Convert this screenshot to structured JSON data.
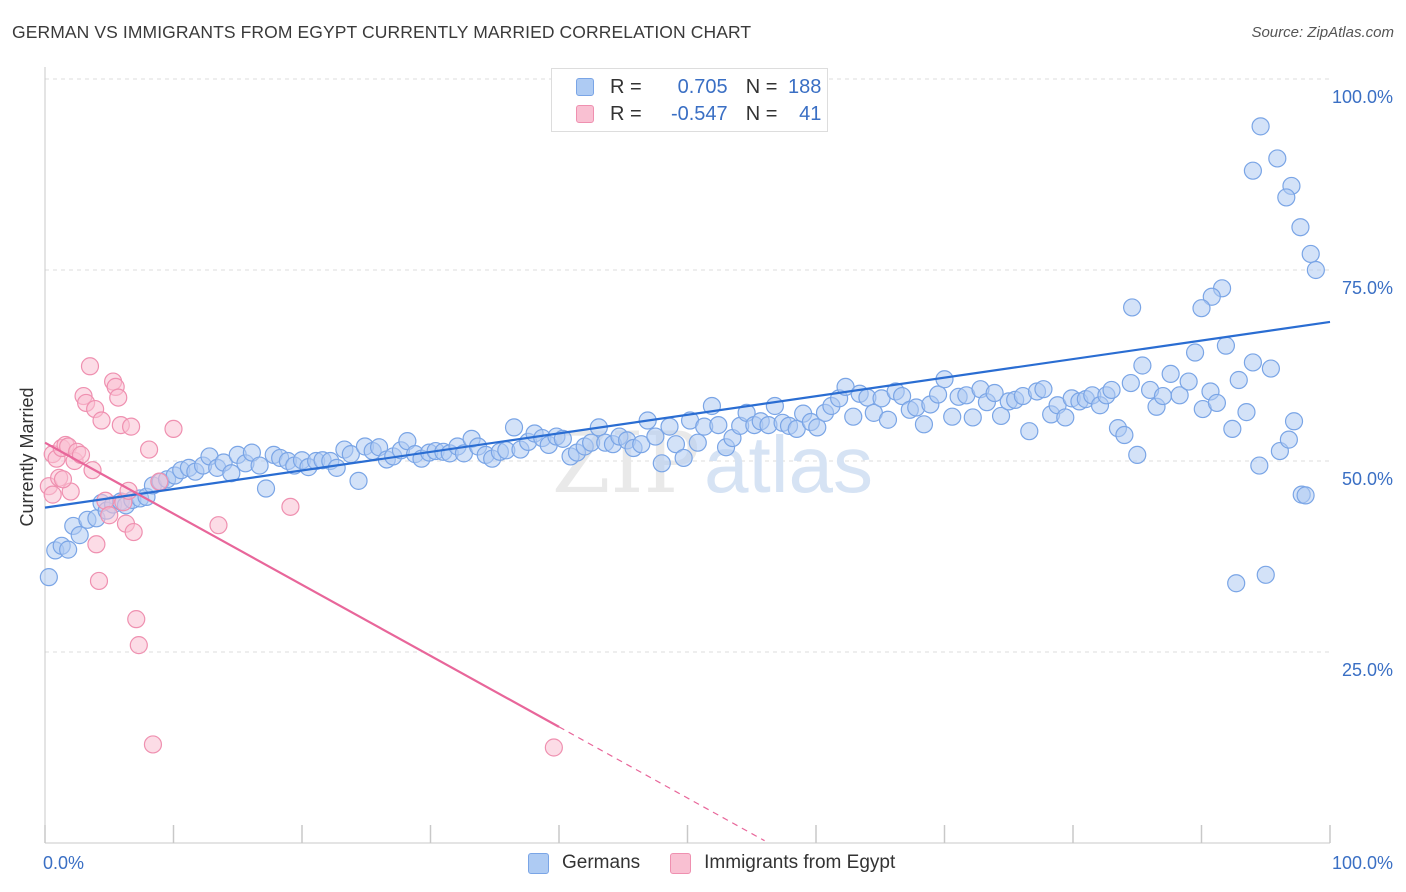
{
  "header": {
    "title": "GERMAN VS IMMIGRANTS FROM EGYPT CURRENTLY MARRIED CORRELATION CHART",
    "source": "Source: ZipAtlas.com"
  },
  "watermark": {
    "part1": "ZIP",
    "part2": "atlas"
  },
  "legend": {
    "rows": [
      {
        "r_label": "R =",
        "r_value": "0.705",
        "n_label": "N =",
        "n_value": "188",
        "color": "#aecbf3",
        "border": "#7aa5e6"
      },
      {
        "r_label": "R =",
        "r_value": "-0.547",
        "n_label": "N =",
        "n_value": "41",
        "color": "#f9c0d2",
        "border": "#ef90b0"
      }
    ]
  },
  "bottom_legend": [
    {
      "label": "Germans",
      "color": "#aecbf3",
      "border": "#7aa5e6"
    },
    {
      "label": "Immigrants from Egypt",
      "color": "#f9c0d2",
      "border": "#ef90b0"
    }
  ],
  "chart_data": {
    "type": "scatter",
    "title": "GERMAN VS IMMIGRANTS FROM EGYPT CURRENTLY MARRIED CORRELATION CHART",
    "xlabel": "",
    "ylabel": "Currently Married",
    "xlim": [
      0,
      100
    ],
    "ylim": [
      0,
      100
    ],
    "x_tick_labels": [
      {
        "value": 0,
        "label": "0.0%"
      },
      {
        "value": 100,
        "label": "100.0%"
      }
    ],
    "y_tick_labels": [
      {
        "value": 25,
        "label": "25.0%"
      },
      {
        "value": 50,
        "label": "50.0%"
      },
      {
        "value": 75,
        "label": "75.0%"
      },
      {
        "value": 100,
        "label": "100.0%"
      }
    ],
    "grid": true,
    "series": [
      {
        "name": "Germans",
        "color": "#7aa5e6",
        "fill": "#aecbf3",
        "trend": {
          "x0": 0,
          "y0": 43.9,
          "x1": 100,
          "y1": 68.2,
          "color": "#2a6dd2"
        },
        "points": [
          [
            0.3,
            34.8
          ],
          [
            0.8,
            38.3
          ],
          [
            1.3,
            38.9
          ],
          [
            1.8,
            38.4
          ],
          [
            2.2,
            41.5
          ],
          [
            2.7,
            40.3
          ],
          [
            3.3,
            42.3
          ],
          [
            4.0,
            42.5
          ],
          [
            4.4,
            44.5
          ],
          [
            4.8,
            43.5
          ],
          [
            5.3,
            44.3
          ],
          [
            5.9,
            44.7
          ],
          [
            6.3,
            44.2
          ],
          [
            6.8,
            44.9
          ],
          [
            7.4,
            45.1
          ],
          [
            7.9,
            45.3
          ],
          [
            8.4,
            46.8
          ],
          [
            9.0,
            47.3
          ],
          [
            9.5,
            47.6
          ],
          [
            10.1,
            48.1
          ],
          [
            10.6,
            48.8
          ],
          [
            11.2,
            49.1
          ],
          [
            11.7,
            48.6
          ],
          [
            12.3,
            49.4
          ],
          [
            12.8,
            50.6
          ],
          [
            13.4,
            49.1
          ],
          [
            13.9,
            49.8
          ],
          [
            14.5,
            48.4
          ],
          [
            15.0,
            50.8
          ],
          [
            15.6,
            49.7
          ],
          [
            16.1,
            51.1
          ],
          [
            16.7,
            49.4
          ],
          [
            17.2,
            46.4
          ],
          [
            17.8,
            50.8
          ],
          [
            18.3,
            50.4
          ],
          [
            18.9,
            50.0
          ],
          [
            19.4,
            49.4
          ],
          [
            20.0,
            50.1
          ],
          [
            20.5,
            49.2
          ],
          [
            21.1,
            50.0
          ],
          [
            21.6,
            50.1
          ],
          [
            22.2,
            50.0
          ],
          [
            22.7,
            49.1
          ],
          [
            23.3,
            51.5
          ],
          [
            23.8,
            50.9
          ],
          [
            24.4,
            47.4
          ],
          [
            24.9,
            51.9
          ],
          [
            25.5,
            51.3
          ],
          [
            26.0,
            51.8
          ],
          [
            26.6,
            50.2
          ],
          [
            27.1,
            50.6
          ],
          [
            27.7,
            51.4
          ],
          [
            28.2,
            52.6
          ],
          [
            28.8,
            50.9
          ],
          [
            29.3,
            50.3
          ],
          [
            29.9,
            51.1
          ],
          [
            30.4,
            51.3
          ],
          [
            31.0,
            51.2
          ],
          [
            31.5,
            51.0
          ],
          [
            32.1,
            51.9
          ],
          [
            32.6,
            51.0
          ],
          [
            33.2,
            52.9
          ],
          [
            33.7,
            51.9
          ],
          [
            34.3,
            50.8
          ],
          [
            34.8,
            50.3
          ],
          [
            35.4,
            51.2
          ],
          [
            35.9,
            51.4
          ],
          [
            36.5,
            54.4
          ],
          [
            37.0,
            51.5
          ],
          [
            37.6,
            52.5
          ],
          [
            38.1,
            53.6
          ],
          [
            38.7,
            53.0
          ],
          [
            39.2,
            52.1
          ],
          [
            39.8,
            53.2
          ],
          [
            40.3,
            52.9
          ],
          [
            40.9,
            50.6
          ],
          [
            41.4,
            51.1
          ],
          [
            42.0,
            51.9
          ],
          [
            42.5,
            52.4
          ],
          [
            43.1,
            54.4
          ],
          [
            43.6,
            52.4
          ],
          [
            44.2,
            52.2
          ],
          [
            44.7,
            53.2
          ],
          [
            45.3,
            52.7
          ],
          [
            45.8,
            51.7
          ],
          [
            46.4,
            52.2
          ],
          [
            46.9,
            55.3
          ],
          [
            47.5,
            53.2
          ],
          [
            48.0,
            49.7
          ],
          [
            48.6,
            54.5
          ],
          [
            49.1,
            52.2
          ],
          [
            49.7,
            50.4
          ],
          [
            50.2,
            55.3
          ],
          [
            50.8,
            52.4
          ],
          [
            51.3,
            54.5
          ],
          [
            51.9,
            57.2
          ],
          [
            52.4,
            54.7
          ],
          [
            53.0,
            51.8
          ],
          [
            53.5,
            53.0
          ],
          [
            54.1,
            54.6
          ],
          [
            54.6,
            56.3
          ],
          [
            55.2,
            54.7
          ],
          [
            55.7,
            55.2
          ],
          [
            56.3,
            54.7
          ],
          [
            56.8,
            57.2
          ],
          [
            57.4,
            55.0
          ],
          [
            57.9,
            54.6
          ],
          [
            58.5,
            54.2
          ],
          [
            59.0,
            56.2
          ],
          [
            59.6,
            55.1
          ],
          [
            60.1,
            54.4
          ],
          [
            60.7,
            56.3
          ],
          [
            61.2,
            57.2
          ],
          [
            61.8,
            58.2
          ],
          [
            62.3,
            59.7
          ],
          [
            62.9,
            55.8
          ],
          [
            63.4,
            58.8
          ],
          [
            64.0,
            58.3
          ],
          [
            64.5,
            56.3
          ],
          [
            65.1,
            58.2
          ],
          [
            65.6,
            55.4
          ],
          [
            66.2,
            59.1
          ],
          [
            66.7,
            58.5
          ],
          [
            67.3,
            56.7
          ],
          [
            67.8,
            57.0
          ],
          [
            68.4,
            54.8
          ],
          [
            68.9,
            57.4
          ],
          [
            69.5,
            58.7
          ],
          [
            70.0,
            60.7
          ],
          [
            70.6,
            55.8
          ],
          [
            71.1,
            58.4
          ],
          [
            71.7,
            58.6
          ],
          [
            72.2,
            55.7
          ],
          [
            72.8,
            59.4
          ],
          [
            73.3,
            57.7
          ],
          [
            73.9,
            58.9
          ],
          [
            74.4,
            55.9
          ],
          [
            75.0,
            57.8
          ],
          [
            75.5,
            58.0
          ],
          [
            76.1,
            58.5
          ],
          [
            76.6,
            53.9
          ],
          [
            77.2,
            59.1
          ],
          [
            77.7,
            59.4
          ],
          [
            78.3,
            56.1
          ],
          [
            78.8,
            57.3
          ],
          [
            79.4,
            55.7
          ],
          [
            79.9,
            58.2
          ],
          [
            80.5,
            57.8
          ],
          [
            81.0,
            58.1
          ],
          [
            81.5,
            58.6
          ],
          [
            82.1,
            57.3
          ],
          [
            82.6,
            58.6
          ],
          [
            83.0,
            59.3
          ],
          [
            83.5,
            54.3
          ],
          [
            84.0,
            53.4
          ],
          [
            84.5,
            60.2
          ],
          [
            85.0,
            50.8
          ],
          [
            85.4,
            62.5
          ],
          [
            86.0,
            59.3
          ],
          [
            86.5,
            57.1
          ],
          [
            87.0,
            58.5
          ],
          [
            87.6,
            61.4
          ],
          [
            88.3,
            58.6
          ],
          [
            89.0,
            60.4
          ],
          [
            89.5,
            64.2
          ],
          [
            90.1,
            56.8
          ],
          [
            90.7,
            59.1
          ],
          [
            91.2,
            57.6
          ],
          [
            91.9,
            65.1
          ],
          [
            92.4,
            54.2
          ],
          [
            92.9,
            60.6
          ],
          [
            93.5,
            56.4
          ],
          [
            94.0,
            62.9
          ],
          [
            94.5,
            49.4
          ],
          [
            95.4,
            62.1
          ],
          [
            96.1,
            51.3
          ],
          [
            96.8,
            52.8
          ],
          [
            97.2,
            55.2
          ],
          [
            97.8,
            45.6
          ],
          [
            98.1,
            45.5
          ],
          [
            91.6,
            72.6
          ],
          [
            90.8,
            71.5
          ],
          [
            90.0,
            70.0
          ],
          [
            84.6,
            70.1
          ],
          [
            92.7,
            34.0
          ],
          [
            95.0,
            35.1
          ],
          [
            94.0,
            88.0
          ],
          [
            94.6,
            93.8
          ],
          [
            95.9,
            89.6
          ],
          [
            97.0,
            86.0
          ],
          [
            97.7,
            80.6
          ],
          [
            98.5,
            77.1
          ],
          [
            96.6,
            84.5
          ],
          [
            98.9,
            75.0
          ]
        ]
      },
      {
        "name": "Immigrants from Egypt",
        "color": "#ef90b0",
        "fill": "#f9c0d2",
        "trend": {
          "x0": 0,
          "y0": 52.4,
          "x1": 40.0,
          "y1": 15.2,
          "dash_to_x": 56.0,
          "dash_to_y": 0.3,
          "color": "#e8669a"
        },
        "points": [
          [
            0.3,
            46.7
          ],
          [
            0.6,
            50.9
          ],
          [
            0.9,
            50.3
          ],
          [
            1.1,
            47.8
          ],
          [
            1.3,
            51.7
          ],
          [
            1.6,
            52.1
          ],
          [
            1.8,
            51.9
          ],
          [
            2.0,
            46.0
          ],
          [
            2.3,
            50.0
          ],
          [
            2.5,
            51.2
          ],
          [
            2.8,
            50.8
          ],
          [
            3.0,
            58.5
          ],
          [
            3.2,
            57.6
          ],
          [
            3.5,
            62.4
          ],
          [
            3.7,
            48.8
          ],
          [
            3.9,
            56.8
          ],
          [
            4.0,
            39.1
          ],
          [
            4.2,
            34.3
          ],
          [
            4.4,
            55.3
          ],
          [
            4.7,
            44.8
          ],
          [
            5.0,
            42.9
          ],
          [
            5.3,
            60.4
          ],
          [
            5.5,
            59.7
          ],
          [
            5.7,
            58.3
          ],
          [
            5.9,
            54.7
          ],
          [
            6.1,
            44.6
          ],
          [
            6.3,
            41.8
          ],
          [
            6.5,
            46.1
          ],
          [
            6.7,
            54.5
          ],
          [
            6.9,
            40.7
          ],
          [
            7.1,
            29.3
          ],
          [
            7.3,
            25.9
          ],
          [
            8.1,
            51.5
          ],
          [
            8.4,
            12.9
          ],
          [
            8.9,
            47.3
          ],
          [
            10.0,
            54.2
          ],
          [
            13.5,
            41.6
          ],
          [
            19.1,
            44.0
          ],
          [
            39.6,
            12.5
          ],
          [
            1.4,
            47.6
          ],
          [
            0.6,
            45.6
          ]
        ]
      }
    ]
  }
}
